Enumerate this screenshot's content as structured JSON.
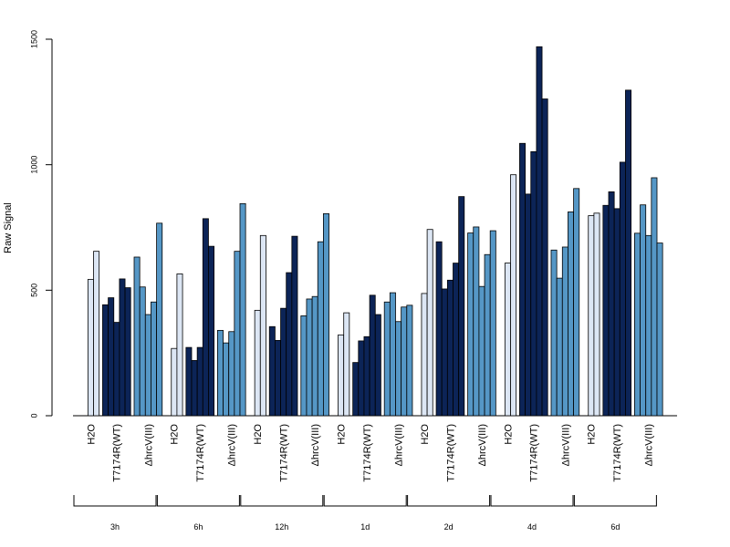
{
  "chart_data": {
    "type": "bar",
    "title": "",
    "xlabel": "",
    "ylabel": "Raw Signal",
    "ylim": [
      0,
      1500
    ],
    "yticks": [
      0,
      500,
      1000,
      1500
    ],
    "grid": false,
    "legend": "none",
    "colors": {
      "H2O": "#dce6f4",
      "T7174R(WT)": "#0c2457",
      "ΔhrcV(III)": "#5597c6"
    },
    "groups": [
      {
        "time": "3h",
        "conditions": [
          {
            "name": "H2O",
            "values": [
              0,
              543,
              655
            ]
          },
          {
            "name": "T7174R(WT)",
            "values": [
              442,
              470,
              372,
              545,
              510
            ]
          },
          {
            "name": "ΔhrcV(III)",
            "values": [
              632,
              513,
              403,
              453,
              767
            ]
          }
        ]
      },
      {
        "time": "6h",
        "conditions": [
          {
            "name": "H2O",
            "values": [
              0,
              268,
              565
            ]
          },
          {
            "name": "T7174R(WT)",
            "values": [
              272,
              220,
              272,
              785,
              675
            ]
          },
          {
            "name": "ΔhrcV(III)",
            "values": [
              340,
              290,
              335,
              655,
              845
            ]
          }
        ]
      },
      {
        "time": "12h",
        "conditions": [
          {
            "name": "H2O",
            "values": [
              0,
              420,
              718
            ]
          },
          {
            "name": "T7174R(WT)",
            "values": [
              355,
              300,
              428,
              570,
              715
            ]
          },
          {
            "name": "ΔhrcV(III)",
            "values": [
              398,
              465,
              475,
              693,
              805
            ]
          }
        ]
      },
      {
        "time": "1d",
        "conditions": [
          {
            "name": "H2O",
            "values": [
              0,
              322,
              410
            ]
          },
          {
            "name": "T7174R(WT)",
            "values": [
              212,
              298,
              315,
              480,
              403
            ]
          },
          {
            "name": "ΔhrcV(III)",
            "values": [
              453,
              490,
              375,
              433,
              440
            ]
          }
        ]
      },
      {
        "time": "2d",
        "conditions": [
          {
            "name": "H2O",
            "values": [
              0,
              487,
              742
            ]
          },
          {
            "name": "T7174R(WT)",
            "values": [
              693,
              505,
              540,
              608,
              873
            ]
          },
          {
            "name": "ΔhrcV(III)",
            "values": [
              728,
              752,
              515,
              642,
              737
            ]
          }
        ]
      },
      {
        "time": "4d",
        "conditions": [
          {
            "name": "H2O",
            "values": [
              0,
              608,
              960
            ]
          },
          {
            "name": "T7174R(WT)",
            "values": [
              1085,
              883,
              1052,
              1470,
              1262
            ]
          },
          {
            "name": "ΔhrcV(III)",
            "values": [
              660,
              548,
              672,
              812,
              905
            ]
          }
        ]
      },
      {
        "time": "6d",
        "conditions": [
          {
            "name": "H2O",
            "values": [
              0,
              797,
              807
            ]
          },
          {
            "name": "T7174R(WT)",
            "values": [
              838,
              892,
              825,
              1010,
              1297
            ]
          },
          {
            "name": "ΔhrcV(III)",
            "values": [
              727,
              840,
              718,
              948,
              688
            ]
          }
        ]
      }
    ]
  }
}
